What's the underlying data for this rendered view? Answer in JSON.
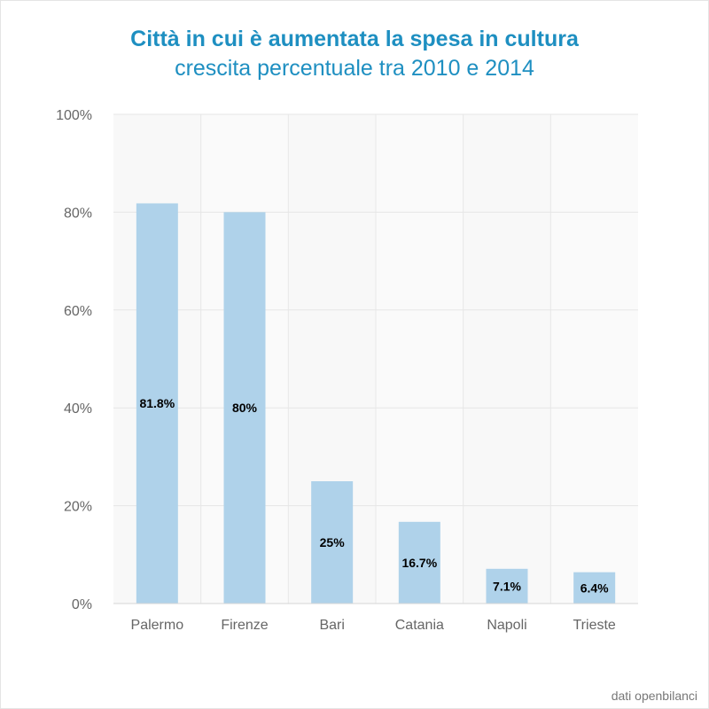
{
  "chart_data": {
    "type": "bar",
    "title": "Città in cui è aumentata la spesa in cultura",
    "subtitle": "crescita percentuale tra 2010 e 2014",
    "categories": [
      "Palermo",
      "Firenze",
      "Bari",
      "Catania",
      "Napoli",
      "Trieste"
    ],
    "values": [
      81.8,
      80,
      25,
      16.7,
      7.1,
      6.4
    ],
    "data_labels": [
      "81.8%",
      "80%",
      "25%",
      "16.7%",
      "7.1%",
      "6.4%"
    ],
    "ylim": [
      0,
      100
    ],
    "yticks": [
      0,
      20,
      40,
      60,
      80,
      100
    ],
    "ytick_labels": [
      "0%",
      "20%",
      "40%",
      "60%",
      "80%",
      "100%"
    ],
    "xlabel": "",
    "ylabel": "",
    "grid": true,
    "bar_color": "#afd2ea",
    "title_color": "#1e8fc1"
  },
  "source": "dati openbilanci"
}
